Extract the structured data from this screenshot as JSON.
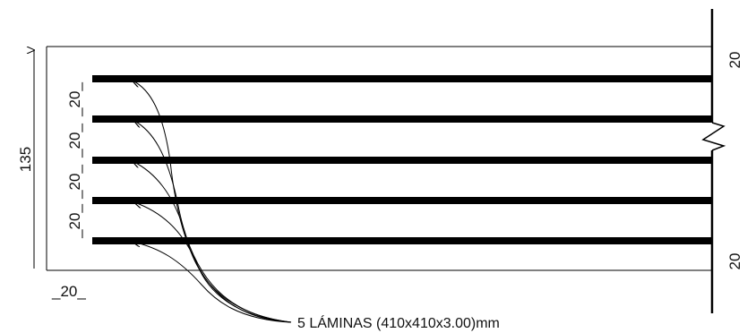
{
  "drawing": {
    "line_color": "#000000",
    "dimensions": {
      "total_height": "135",
      "left_offset": "_20_",
      "spacing_1": "_20_",
      "spacing_2": "_20_",
      "spacing_3": "_20_",
      "spacing_4": "_20_",
      "right_top": "20",
      "right_bottom": "20"
    },
    "callout": {
      "label": "5 LÁMINAS (410x410x3.00)mm"
    },
    "laminas_count": 5
  }
}
